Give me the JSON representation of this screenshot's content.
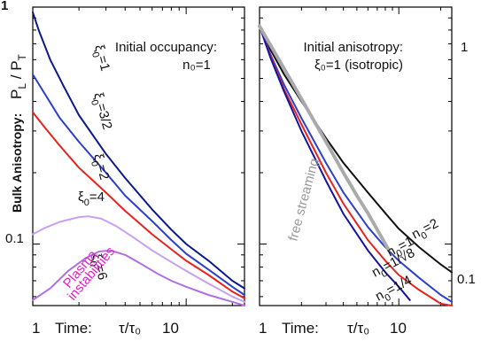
{
  "figure": {
    "ylabel_prefix": "Bulk Anisotropy:",
    "ylabel_symbol": "P_L / P_T",
    "x_axis_label": "Time:",
    "x_axis_symbol": "τ/τ₀",
    "colors": {
      "xi_1": "#0a1a8a",
      "xi_3_2": "#2a3fcf",
      "xi_2": "#e8231e",
      "xi_4": "#c8a0f0",
      "xi_6": "#b26fe0",
      "n0_2": "#111111",
      "n0_1": "#2a3fcf",
      "n0_1_sqrt8": "#e8231e",
      "n0_1_4": "#1414a0",
      "free_streaming": "#aaaaaa",
      "plasma_text": "#e020c8"
    }
  },
  "chart_data": [
    {
      "type": "line",
      "panel": "left",
      "scale": "log-log",
      "ylim": [
        0.055,
        1
      ],
      "yticks": [
        "1",
        "0.1"
      ],
      "xticks": [
        "1",
        "10"
      ],
      "annotation": [
        "Initial occupancy:",
        "n₀=1"
      ],
      "series": [
        {
          "name": "ξ₀=1",
          "label_main": "ξ",
          "label_sub": "0",
          "label_rest": "=1",
          "color_key": "xi_1",
          "x": [
            1,
            1.1,
            1.3,
            1.6,
            2,
            3,
            4,
            6,
            8,
            10,
            14,
            20,
            24
          ],
          "y": [
            0.95,
            0.79,
            0.6,
            0.46,
            0.35,
            0.24,
            0.19,
            0.14,
            0.115,
            0.1,
            0.085,
            0.07,
            0.065
          ]
        },
        {
          "name": "ξ₀=3/2",
          "label_main": "ξ",
          "label_sub": "0",
          "label_rest": "=3/2",
          "color_key": "xi_3_2",
          "x": [
            1,
            1.2,
            1.5,
            2,
            3,
            4,
            6,
            8,
            10,
            14,
            20,
            24
          ],
          "y": [
            0.52,
            0.43,
            0.34,
            0.27,
            0.2,
            0.16,
            0.125,
            0.104,
            0.091,
            0.078,
            0.066,
            0.061
          ]
        },
        {
          "name": "ξ₀=2",
          "label_main": "ξ",
          "label_sub": "0",
          "label_rest": "=2",
          "color_key": "xi_2",
          "x": [
            1,
            1.2,
            1.5,
            2,
            3,
            4,
            6,
            8,
            10,
            14,
            20,
            24
          ],
          "y": [
            0.36,
            0.31,
            0.26,
            0.21,
            0.165,
            0.138,
            0.11,
            0.095,
            0.085,
            0.074,
            0.063,
            0.059
          ]
        },
        {
          "name": "ξ₀=4",
          "label_main": "ξ",
          "label_sub": "0",
          "label_rest": "=4",
          "color_key": "xi_4",
          "x": [
            1,
            1.2,
            1.5,
            2,
            2.3,
            2.8,
            3.5,
            4.5,
            6,
            8,
            10,
            14,
            20,
            24
          ],
          "y": [
            0.11,
            0.117,
            0.124,
            0.13,
            0.131,
            0.128,
            0.119,
            0.107,
            0.094,
            0.084,
            0.077,
            0.068,
            0.06,
            0.057
          ]
        },
        {
          "name": "ξ₀=6",
          "label_main": "ξ",
          "label_sub": "0",
          "label_rest": "=6",
          "color_key": "xi_6",
          "x": [
            1,
            1.3,
            1.7,
            2.2,
            2.7,
            3.2,
            4,
            5,
            6.5,
            8,
            10,
            14,
            20,
            24
          ],
          "y": [
            0.058,
            0.065,
            0.077,
            0.087,
            0.093,
            0.094,
            0.09,
            0.083,
            0.075,
            0.07,
            0.066,
            0.061,
            0.057,
            0.055
          ]
        }
      ],
      "plasma_label": [
        "Plasma",
        "instabilities"
      ]
    },
    {
      "type": "line",
      "panel": "right",
      "scale": "log-log",
      "ylim": [
        0.055,
        1
      ],
      "yticks": [
        "1",
        "0.1"
      ],
      "xticks": [
        "1",
        "10"
      ],
      "annotation": [
        "Initial anisotropy:",
        "ξ₀=1 (isotropic)"
      ],
      "series": [
        {
          "name": "n₀=2",
          "label_main": "n",
          "label_sub": "0",
          "label_rest": "=2",
          "color_key": "n0_2",
          "x": [
            1,
            1.2,
            1.5,
            2,
            3,
            4,
            6,
            8,
            10,
            14,
            20,
            24
          ],
          "y": [
            0.83,
            0.66,
            0.52,
            0.4,
            0.28,
            0.22,
            0.165,
            0.135,
            0.116,
            0.097,
            0.082,
            0.076
          ]
        },
        {
          "name": "n₀=1",
          "label_main": "n",
          "label_sub": "0",
          "label_rest": "=1",
          "color_key": "n0_1",
          "x": [
            1,
            1.2,
            1.5,
            2,
            3,
            4,
            6,
            8,
            10,
            14,
            20,
            24
          ],
          "y": [
            0.83,
            0.63,
            0.47,
            0.34,
            0.22,
            0.165,
            0.118,
            0.097,
            0.085,
            0.072,
            0.061,
            0.057
          ]
        },
        {
          "name": "n₀=1/√8",
          "label_main": "n",
          "label_sub": "0",
          "label_rest": "=1/√8",
          "color_key": "n0_1_sqrt8",
          "x": [
            1,
            1.2,
            1.5,
            2,
            3,
            4,
            6,
            8,
            10,
            14,
            20,
            24
          ],
          "y": [
            0.83,
            0.62,
            0.45,
            0.32,
            0.2,
            0.148,
            0.104,
            0.085,
            0.074,
            0.064,
            0.056,
            0.053
          ]
        },
        {
          "name": "n₀=1/4",
          "label_main": "n",
          "label_sub": "0",
          "label_rest": "=1/4",
          "color_key": "n0_1_4",
          "x": [
            1,
            1.2,
            1.5,
            2,
            3,
            4,
            6,
            8,
            10,
            12
          ],
          "y": [
            0.83,
            0.61,
            0.44,
            0.3,
            0.185,
            0.134,
            0.094,
            0.076,
            0.066,
            0.058
          ]
        },
        {
          "name": "free streaming",
          "color_key": "free_streaming",
          "style": "dotted",
          "x": [
            1,
            1.5,
            2,
            3,
            4,
            5,
            6,
            7,
            8,
            8.5
          ],
          "y": [
            0.83,
            0.55,
            0.41,
            0.27,
            0.2,
            0.16,
            0.135,
            0.115,
            0.1,
            0.094
          ]
        }
      ],
      "free_streaming_label": "free streaming"
    }
  ]
}
